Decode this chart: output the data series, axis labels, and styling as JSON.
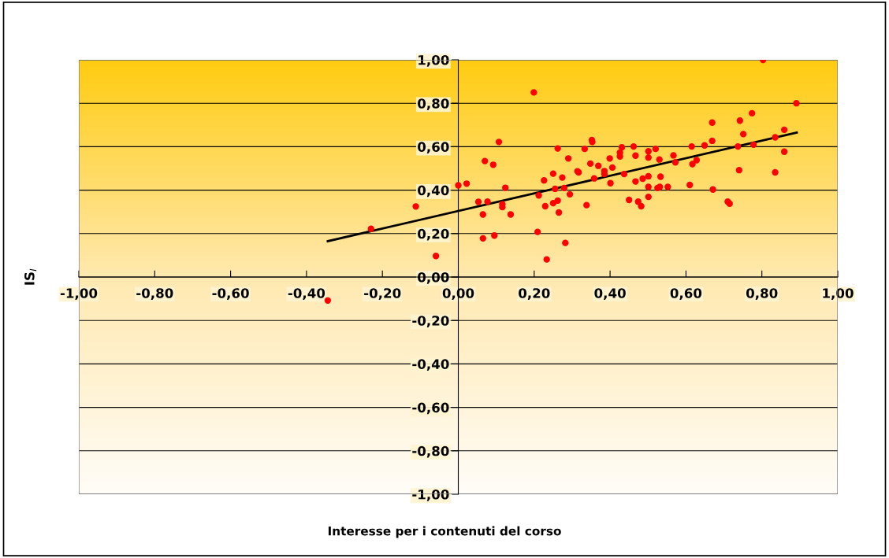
{
  "chart_data": {
    "type": "scatter",
    "xlabel": "Interesse per i contenuti del corso",
    "ylabel": "IS$_{I}$",
    "xlim": [
      -1,
      1
    ],
    "ylim": [
      -1,
      1
    ],
    "xticks": [
      {
        "value": -1,
        "label": "-1,00"
      },
      {
        "value": -0.8,
        "label": "-0,80"
      },
      {
        "value": -0.6,
        "label": "-0,60"
      },
      {
        "value": -0.4,
        "label": "-0,40"
      },
      {
        "value": -0.2,
        "label": "-0,20"
      },
      {
        "value": 0,
        "label": "0,00"
      },
      {
        "value": 0.2,
        "label": "0,20"
      },
      {
        "value": 0.4,
        "label": "0,40"
      },
      {
        "value": 0.6,
        "label": "0,60"
      },
      {
        "value": 0.8,
        "label": "0,80"
      },
      {
        "value": 1,
        "label": "1,00"
      }
    ],
    "yticks": [
      {
        "value": -1,
        "label": "-1,00"
      },
      {
        "value": -0.8,
        "label": "-0,80"
      },
      {
        "value": -0.6,
        "label": "-0,60"
      },
      {
        "value": -0.4,
        "label": "-0,40"
      },
      {
        "value": -0.2,
        "label": "-0,20"
      },
      {
        "value": 0,
        "label": "0,00"
      },
      {
        "value": 0.2,
        "label": "0,20"
      },
      {
        "value": 0.4,
        "label": "0,40"
      },
      {
        "value": 0.6,
        "label": "0,60"
      },
      {
        "value": 0.8,
        "label": "0,80"
      },
      {
        "value": 1,
        "label": "1,00"
      }
    ],
    "grid": "y",
    "legend": false,
    "series": [
      {
        "type": "scatter",
        "color": "#ff0000",
        "marker": "circle",
        "x": [
          -0.344,
          -0.23,
          -0.112,
          -0.059,
          0.0,
          0.022,
          0.053,
          0.065,
          0.065,
          0.07,
          0.077,
          0.092,
          0.095,
          0.107,
          0.116,
          0.116,
          0.124,
          0.138,
          0.199,
          0.209,
          0.212,
          0.226,
          0.229,
          0.233,
          0.25,
          0.25,
          0.255,
          0.262,
          0.262,
          0.265,
          0.274,
          0.279,
          0.282,
          0.29,
          0.294,
          0.314,
          0.317,
          0.333,
          0.338,
          0.348,
          0.352,
          0.353,
          0.358,
          0.369,
          0.385,
          0.385,
          0.399,
          0.401,
          0.406,
          0.426,
          0.426,
          0.431,
          0.437,
          0.45,
          0.462,
          0.467,
          0.467,
          0.474,
          0.482,
          0.486,
          0.501,
          0.501,
          0.501,
          0.501,
          0.501,
          0.52,
          0.525,
          0.53,
          0.531,
          0.533,
          0.552,
          0.567,
          0.572,
          0.61,
          0.615,
          0.617,
          0.628,
          0.649,
          0.669,
          0.669,
          0.671,
          0.71,
          0.715,
          0.737,
          0.74,
          0.742,
          0.751,
          0.774,
          0.778,
          0.803,
          0.835,
          0.835,
          0.859,
          0.859,
          0.891
        ],
        "values": [
          -0.108,
          0.222,
          0.325,
          0.097,
          0.422,
          0.43,
          0.346,
          0.288,
          0.178,
          0.534,
          0.347,
          0.517,
          0.191,
          0.622,
          0.335,
          0.322,
          0.411,
          0.288,
          0.85,
          0.208,
          0.376,
          0.445,
          0.326,
          0.081,
          0.476,
          0.34,
          0.406,
          0.592,
          0.352,
          0.297,
          0.458,
          0.41,
          0.157,
          0.546,
          0.381,
          0.487,
          0.482,
          0.59,
          0.331,
          0.522,
          0.631,
          0.622,
          0.454,
          0.512,
          0.488,
          0.474,
          0.546,
          0.432,
          0.504,
          0.573,
          0.555,
          0.597,
          0.474,
          0.355,
          0.601,
          0.559,
          0.44,
          0.347,
          0.326,
          0.453,
          0.579,
          0.55,
          0.464,
          0.415,
          0.369,
          0.59,
          0.41,
          0.541,
          0.415,
          0.462,
          0.415,
          0.56,
          0.528,
          0.424,
          0.601,
          0.52,
          0.538,
          0.606,
          0.711,
          0.627,
          0.403,
          0.347,
          0.338,
          0.601,
          0.492,
          0.72,
          0.658,
          0.754,
          0.609,
          1.0,
          0.643,
          0.482,
          0.678,
          0.577,
          0.8
        ]
      },
      {
        "type": "line",
        "color": "#000000",
        "x": [
          -0.344,
          0.892
        ],
        "values": [
          0.165,
          0.665
        ]
      }
    ]
  }
}
